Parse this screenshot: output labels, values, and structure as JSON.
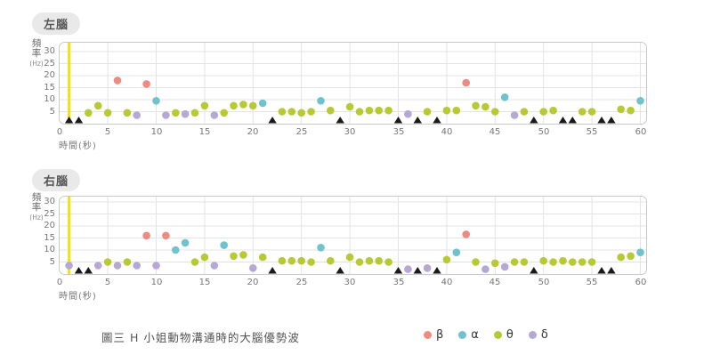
{
  "caption": {
    "text": "圖三  H 小姐動物溝通時的大腦優勢波"
  },
  "colors": {
    "beta": "#ed8a82",
    "alpha": "#70c2cc",
    "theta": "#b7ca35",
    "delta": "#b5a8d2",
    "event_line": "#f2e20e",
    "grid": "#e3e3e3",
    "border": "#c9c9c9",
    "triangle": "#1a1a1a",
    "tick_text": "#777777"
  },
  "axes": {
    "y_label": "頻率",
    "y_unit": "(Hz)",
    "x_label": "時間(秒)",
    "y_ticks": [
      30,
      25,
      20,
      15,
      10,
      5
    ],
    "x_ticks": [
      0,
      5,
      10,
      15,
      20,
      25,
      30,
      35,
      40,
      45,
      50,
      55,
      60
    ]
  },
  "legend": {
    "items": [
      {
        "label": "β",
        "wave": "beta"
      },
      {
        "label": "α",
        "wave": "alpha"
      },
      {
        "label": "θ",
        "wave": "theta"
      },
      {
        "label": "δ",
        "wave": "delta"
      }
    ]
  },
  "chart_data": [
    {
      "id": "left-brain",
      "title": "左腦",
      "type": "scatter",
      "xlabel": "時間(秒)",
      "ylabel": "頻率(Hz)",
      "xlim": [
        0,
        60
      ],
      "ylim": [
        0,
        34
      ],
      "grid": true,
      "event_line_x": 1,
      "triangle_marks_x": [
        1,
        2,
        22,
        29,
        35,
        37,
        39,
        49,
        52,
        53,
        56,
        57
      ],
      "series": [
        {
          "name": "β",
          "wave": "beta",
          "points": [
            [
              6,
              18
            ],
            [
              9,
              16.5
            ],
            [
              42,
              17
            ]
          ]
        },
        {
          "name": "α",
          "wave": "alpha",
          "points": [
            [
              10,
              9.5
            ],
            [
              21,
              8.5
            ],
            [
              27,
              9.5
            ],
            [
              46,
              11
            ],
            [
              60,
              9.5
            ]
          ]
        },
        {
          "name": "θ",
          "wave": "theta",
          "points": [
            [
              3,
              4.5
            ],
            [
              4,
              7.5
            ],
            [
              5,
              4.5
            ],
            [
              7,
              4.5
            ],
            [
              12,
              4.5
            ],
            [
              14,
              4.5
            ],
            [
              15,
              7.5
            ],
            [
              17,
              4.5
            ],
            [
              18,
              7.5
            ],
            [
              19,
              8
            ],
            [
              20,
              7.5
            ],
            [
              23,
              5
            ],
            [
              24,
              5
            ],
            [
              25,
              4.5
            ],
            [
              26,
              5
            ],
            [
              28,
              5.5
            ],
            [
              30,
              7
            ],
            [
              31,
              5
            ],
            [
              32,
              5.5
            ],
            [
              33,
              5.5
            ],
            [
              34,
              5.5
            ],
            [
              38,
              5
            ],
            [
              40,
              5.5
            ],
            [
              41,
              5.5
            ],
            [
              43,
              7.5
            ],
            [
              44,
              7
            ],
            [
              45,
              5
            ],
            [
              48,
              5
            ],
            [
              50,
              5
            ],
            [
              51,
              5.5
            ],
            [
              54,
              5
            ],
            [
              55,
              5
            ],
            [
              58,
              6
            ],
            [
              59,
              5.5
            ]
          ]
        },
        {
          "name": "δ",
          "wave": "delta",
          "points": [
            [
              8,
              3.5
            ],
            [
              11,
              3.5
            ],
            [
              13,
              4
            ],
            [
              16,
              3.5
            ],
            [
              36,
              4
            ],
            [
              47,
              3.5
            ]
          ]
        }
      ]
    },
    {
      "id": "right-brain",
      "title": "右腦",
      "type": "scatter",
      "xlabel": "時間(秒)",
      "ylabel": "頻率(Hz)",
      "xlim": [
        0,
        60
      ],
      "ylim": [
        0,
        32.5
      ],
      "grid": true,
      "event_line_x": 1,
      "triangle_marks_x": [
        2,
        3,
        22,
        29,
        35,
        37,
        39,
        49,
        56,
        57
      ],
      "series": [
        {
          "name": "β",
          "wave": "beta",
          "points": [
            [
              9,
              16
            ],
            [
              11,
              16
            ],
            [
              42,
              16.5
            ]
          ]
        },
        {
          "name": "α",
          "wave": "alpha",
          "points": [
            [
              12,
              10
            ],
            [
              13,
              13
            ],
            [
              17,
              12
            ],
            [
              27,
              11
            ],
            [
              41,
              9
            ],
            [
              60,
              9
            ]
          ]
        },
        {
          "name": "θ",
          "wave": "theta",
          "points": [
            [
              5,
              5
            ],
            [
              7,
              5
            ],
            [
              14,
              5
            ],
            [
              15,
              7
            ],
            [
              18,
              7.5
            ],
            [
              19,
              8
            ],
            [
              21,
              7
            ],
            [
              23,
              5.5
            ],
            [
              24,
              5.5
            ],
            [
              25,
              5.5
            ],
            [
              26,
              5
            ],
            [
              28,
              5.5
            ],
            [
              30,
              7
            ],
            [
              31,
              5
            ],
            [
              32,
              5.5
            ],
            [
              33,
              5.5
            ],
            [
              34,
              5
            ],
            [
              40,
              6
            ],
            [
              43,
              5
            ],
            [
              45,
              4.5
            ],
            [
              47,
              5
            ],
            [
              48,
              5
            ],
            [
              50,
              5.5
            ],
            [
              51,
              5
            ],
            [
              52,
              5.5
            ],
            [
              53,
              5
            ],
            [
              54,
              5
            ],
            [
              55,
              5
            ],
            [
              58,
              7
            ],
            [
              59,
              7.5
            ]
          ]
        },
        {
          "name": "δ",
          "wave": "delta",
          "points": [
            [
              1,
              3.5
            ],
            [
              4,
              3.5
            ],
            [
              6,
              3.5
            ],
            [
              8,
              3.5
            ],
            [
              10,
              3.5
            ],
            [
              16,
              3.5
            ],
            [
              20,
              2.5
            ],
            [
              36,
              2
            ],
            [
              38,
              2.5
            ],
            [
              44,
              2
            ],
            [
              46,
              3
            ]
          ]
        }
      ]
    }
  ]
}
